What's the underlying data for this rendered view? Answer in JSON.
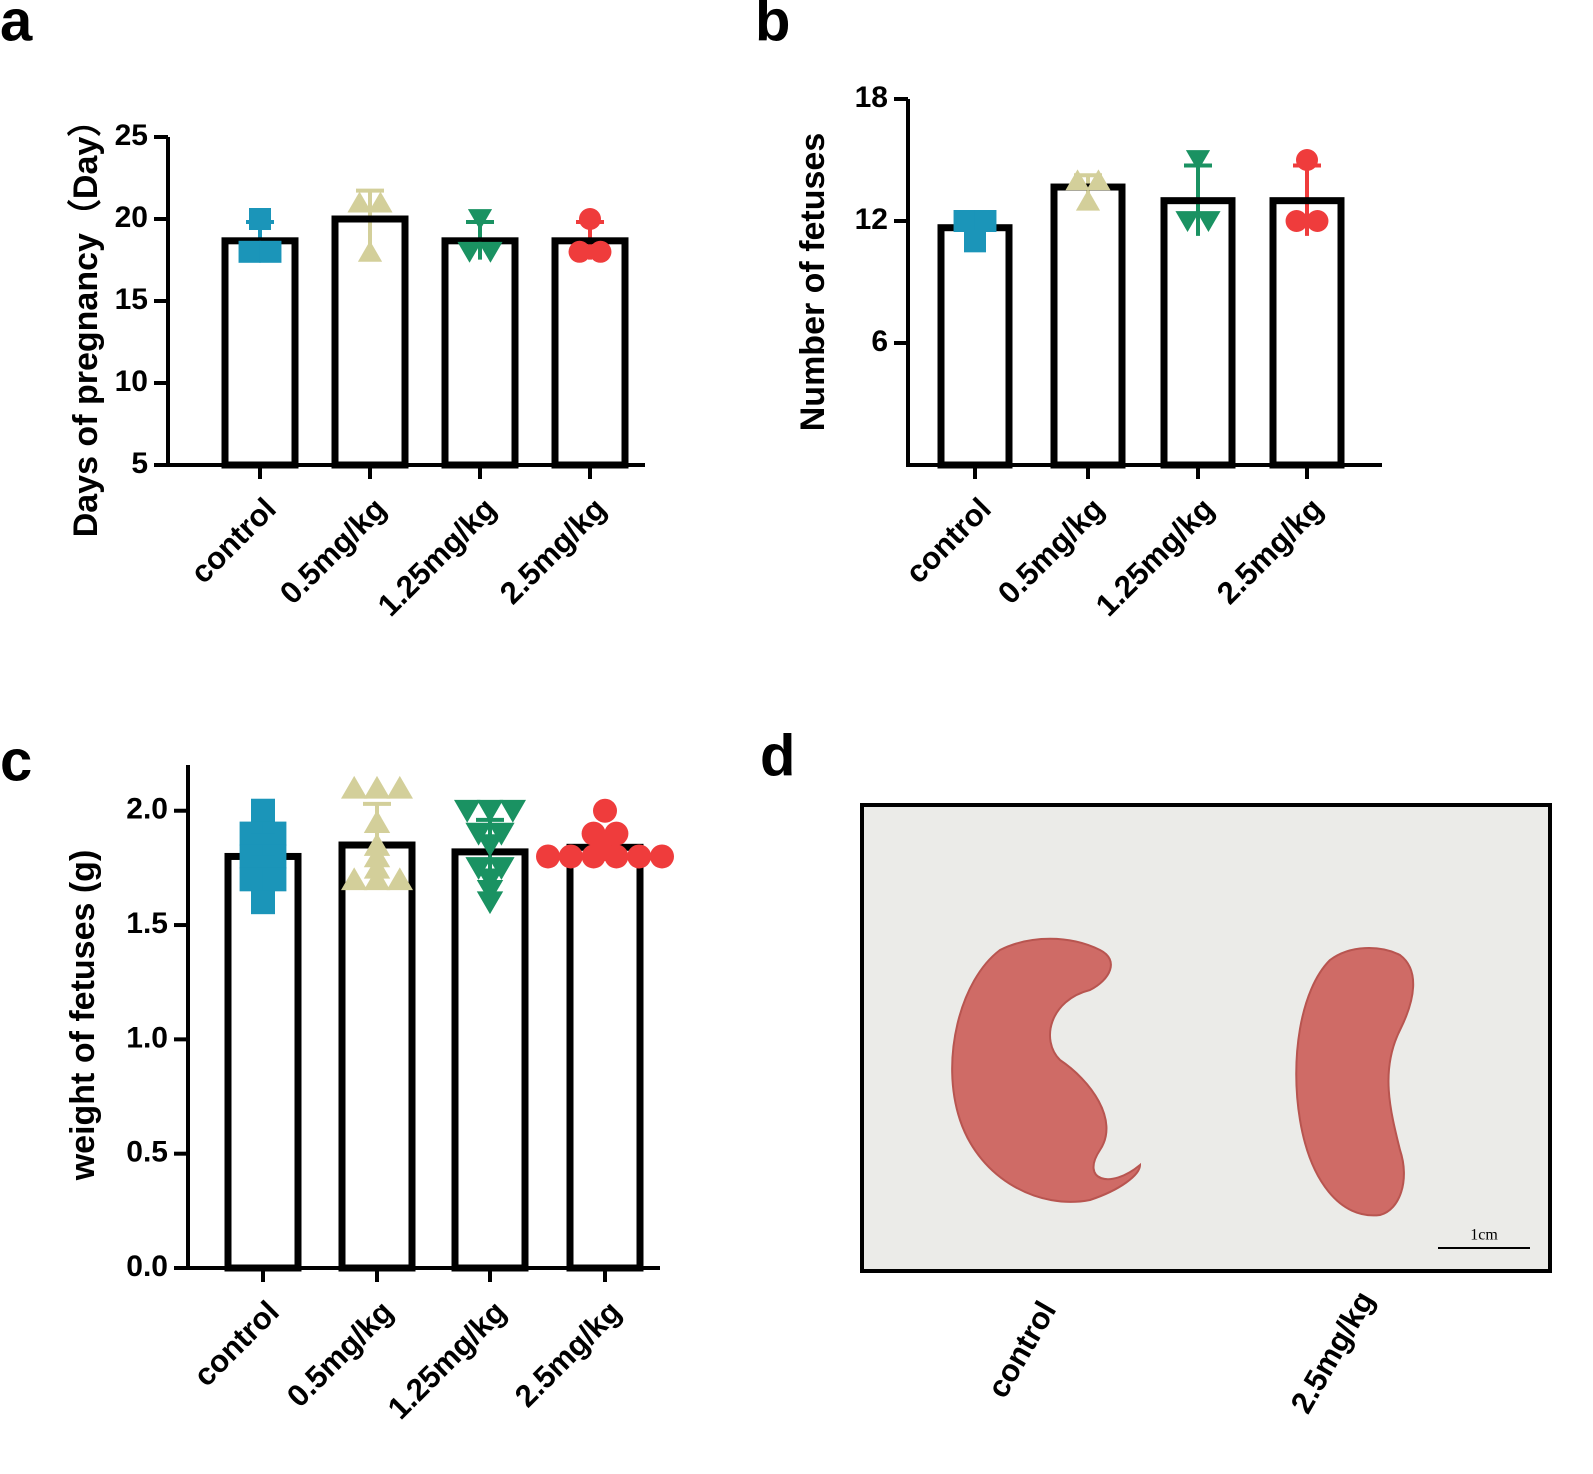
{
  "chart_data": [
    {
      "type": "bar",
      "panel_label": "a",
      "y_label": "Days of pregnancy（Day）",
      "categories": [
        "control",
        "0.5mg/kg",
        "1.25mg/kg",
        "2.5mg/kg"
      ],
      "values": [
        18.67,
        20,
        18.67,
        18.67
      ],
      "errors": [
        1.15,
        1.73,
        1.15,
        1.15
      ],
      "points": [
        [
          20,
          18,
          18
        ],
        [
          21,
          21,
          18
        ],
        [
          20,
          18,
          18
        ],
        [
          20,
          18,
          18
        ]
      ],
      "colors": [
        "#1b95b9",
        "#d3cf9a",
        "#1a9262",
        "#ef3c3c"
      ],
      "markers": [
        "square",
        "triangle",
        "triangle-down",
        "circle"
      ],
      "ylim": [
        5,
        25
      ],
      "yticks": [
        5,
        10,
        15,
        20,
        25
      ]
    },
    {
      "type": "bar",
      "panel_label": "b",
      "y_label": "Number of fetuses",
      "categories": [
        "control",
        "0.5mg/kg",
        "1.25mg/kg",
        "2.5mg/kg"
      ],
      "values": [
        11.67,
        13.67,
        13,
        13
      ],
      "errors": [
        0.58,
        0.58,
        1.73,
        1.73
      ],
      "points": [
        [
          12,
          12,
          11
        ],
        [
          14,
          14,
          13
        ],
        [
          15,
          12,
          12
        ],
        [
          15,
          12,
          12
        ]
      ],
      "colors": [
        "#1b95b9",
        "#d3cf9a",
        "#1a9262",
        "#ef3c3c"
      ],
      "markers": [
        "square",
        "triangle",
        "triangle-down",
        "circle"
      ],
      "ylim": [
        0,
        18
      ],
      "yticks": [
        6,
        12,
        18
      ]
    },
    {
      "type": "bar",
      "panel_label": "c",
      "y_label": "weight of fetuses (g)",
      "categories": [
        "control",
        "0.5mg/kg",
        "1.25mg/kg",
        "2.5mg/kg"
      ],
      "values": [
        1.8,
        1.85,
        1.82,
        1.84
      ],
      "errors": [
        0.12,
        0.18,
        0.14,
        0.06
      ],
      "points": [
        [
          2.0,
          1.9,
          1.9,
          1.85,
          1.8,
          1.8,
          1.75,
          1.7,
          1.7,
          1.6
        ],
        [
          2.1,
          2.1,
          2.1,
          1.95,
          1.85,
          1.8,
          1.75,
          1.7,
          1.7,
          1.7
        ],
        [
          2.0,
          2.0,
          2.0,
          1.9,
          1.9,
          1.85,
          1.75,
          1.75,
          1.7,
          1.65,
          1.6
        ],
        [
          2.0,
          1.9,
          1.9,
          1.85,
          1.8,
          1.8,
          1.8,
          1.8,
          1.8,
          1.8
        ]
      ],
      "colors": [
        "#1b95b9",
        "#d3cf9a",
        "#1a9262",
        "#ef3c3c"
      ],
      "markers": [
        "square",
        "triangle",
        "triangle-down",
        "circle"
      ],
      "ylim": [
        0,
        2.2
      ],
      "yticks": [
        {
          "value": 0,
          "label": "0.0"
        },
        0.5,
        {
          "value": 1,
          "label": "1.0"
        },
        1.5,
        {
          "value": 2,
          "label": "2.0"
        }
      ]
    }
  ],
  "photo": {
    "panel_label": "d",
    "labels": [
      "control",
      "2.5mg/kg"
    ],
    "scale_bar": "1cm"
  }
}
